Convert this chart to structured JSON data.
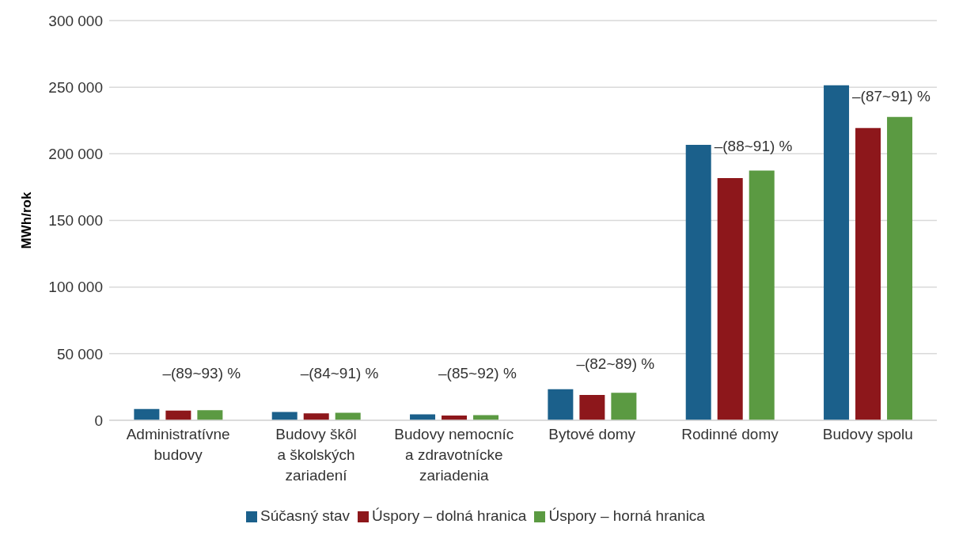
{
  "chart_data": {
    "type": "bar",
    "ylabel": "MWh/rok",
    "categories": [
      "Administratívne\nbudovy",
      "Budovy škôl\na školských\nzariadení",
      "Budovy nemocníc\na zdravotnícke\nzariadenia",
      "Bytové domy",
      "Rodinné domy",
      "Budovy spolu"
    ],
    "series": [
      {
        "name": "Súčasný stav",
        "color": "#1b608b",
        "values": [
          8400,
          6200,
          4500,
          23300,
          206700,
          251400
        ]
      },
      {
        "name": "Úspory – dolná hranica",
        "color": "#8d171b",
        "values": [
          7300,
          5200,
          3600,
          19000,
          181800,
          219400
        ]
      },
      {
        "name": "Úspory – horná hranica",
        "color": "#5b9a42",
        "values": [
          7600,
          5600,
          3900,
          20700,
          187500,
          227600
        ]
      }
    ],
    "ylim": [
      0,
      300000
    ],
    "yticks": [
      {
        "value": 0,
        "label": "0"
      },
      {
        "value": 50000,
        "label": "50 000"
      },
      {
        "value": 100000,
        "label": "100 000"
      },
      {
        "value": 150000,
        "label": "150 000"
      },
      {
        "value": 200000,
        "label": "200 000"
      },
      {
        "value": 250000,
        "label": "250 000"
      },
      {
        "value": 300000,
        "label": "300 000"
      }
    ],
    "grid": "y",
    "legend": "bottom",
    "annotations": [
      "–(89~93) %",
      "–(84~91) %",
      "–(85~92) %",
      "–(82~89) %",
      "–(88~91) %",
      "–(87~91) %"
    ]
  }
}
